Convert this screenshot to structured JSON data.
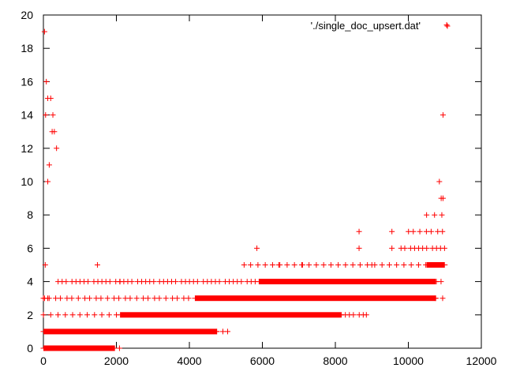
{
  "chart_data": {
    "type": "scatter",
    "title": "",
    "xlabel": "",
    "ylabel": "",
    "xlim": [
      0,
      12000
    ],
    "ylim": [
      0,
      20
    ],
    "x_ticks": [
      0,
      2000,
      4000,
      6000,
      8000,
      10000,
      12000
    ],
    "y_ticks": [
      0,
      2,
      4,
      6,
      8,
      10,
      12,
      14,
      16,
      18,
      20
    ],
    "grid": false,
    "legend_position": "top-right",
    "marker": "plus",
    "series": [
      {
        "name": "'./single_doc_upsert.dat'",
        "color": "#ff0000",
        "dense_bands": [
          {
            "y": 0,
            "x_from": 0,
            "x_to": 1950
          },
          {
            "y": 1,
            "x_from": 0,
            "x_to": 4750
          },
          {
            "y": 2,
            "x_from": 2100,
            "x_to": 8150
          },
          {
            "y": 3,
            "x_from": 4150,
            "x_to": 10750
          },
          {
            "y": 4,
            "x_from": 5900,
            "x_to": 10750
          },
          {
            "y": 5,
            "x_from": 10500,
            "x_to": 11000
          }
        ],
        "sparse_x_ranges": [
          {
            "y": 0,
            "x_from": 1950,
            "x_to": 2100
          },
          {
            "y": 1,
            "x_from": 4750,
            "x_to": 5200
          },
          {
            "y": 2,
            "x_from": 0,
            "x_to": 2100
          },
          {
            "y": 2,
            "x_from": 8150,
            "x_to": 8850
          },
          {
            "y": 3,
            "x_from": 0,
            "x_to": 4150
          },
          {
            "y": 3,
            "x_from": 10750,
            "x_to": 11000
          },
          {
            "y": 4,
            "x_from": 400,
            "x_to": 5900
          },
          {
            "y": 4,
            "x_from": 10750,
            "x_to": 11000
          },
          {
            "y": 5,
            "x_from": 5500,
            "x_to": 10500
          },
          {
            "y": 6,
            "x_from": 9800,
            "x_to": 11050
          },
          {
            "y": 7,
            "x_from": 10000,
            "x_to": 11050
          },
          {
            "y": 8,
            "x_from": 10700,
            "x_to": 11050
          }
        ],
        "points": [
          {
            "x": 30,
            "y": 19
          },
          {
            "x": 80,
            "y": 16
          },
          {
            "x": 120,
            "y": 15
          },
          {
            "x": 200,
            "y": 15
          },
          {
            "x": 60,
            "y": 14
          },
          {
            "x": 260,
            "y": 14
          },
          {
            "x": 240,
            "y": 13
          },
          {
            "x": 300,
            "y": 13
          },
          {
            "x": 360,
            "y": 12
          },
          {
            "x": 160,
            "y": 11
          },
          {
            "x": 120,
            "y": 10
          },
          {
            "x": 50,
            "y": 5
          },
          {
            "x": 30,
            "y": 3
          },
          {
            "x": 120,
            "y": 3
          },
          {
            "x": 1480,
            "y": 5
          },
          {
            "x": 2100,
            "y": 4
          },
          {
            "x": 5850,
            "y": 6
          },
          {
            "x": 8650,
            "y": 7
          },
          {
            "x": 8650,
            "y": 6
          },
          {
            "x": 9550,
            "y": 7
          },
          {
            "x": 9550,
            "y": 6
          },
          {
            "x": 10500,
            "y": 8
          },
          {
            "x": 10850,
            "y": 10
          },
          {
            "x": 10900,
            "y": 9
          },
          {
            "x": 10950,
            "y": 9
          },
          {
            "x": 10950,
            "y": 14
          },
          {
            "x": 11050,
            "y": 19.4
          },
          {
            "x": 6450,
            "y": 5
          },
          {
            "x": 7100,
            "y": 5
          },
          {
            "x": 9000,
            "y": 5
          },
          {
            "x": 8850,
            "y": 2
          }
        ]
      }
    ]
  }
}
